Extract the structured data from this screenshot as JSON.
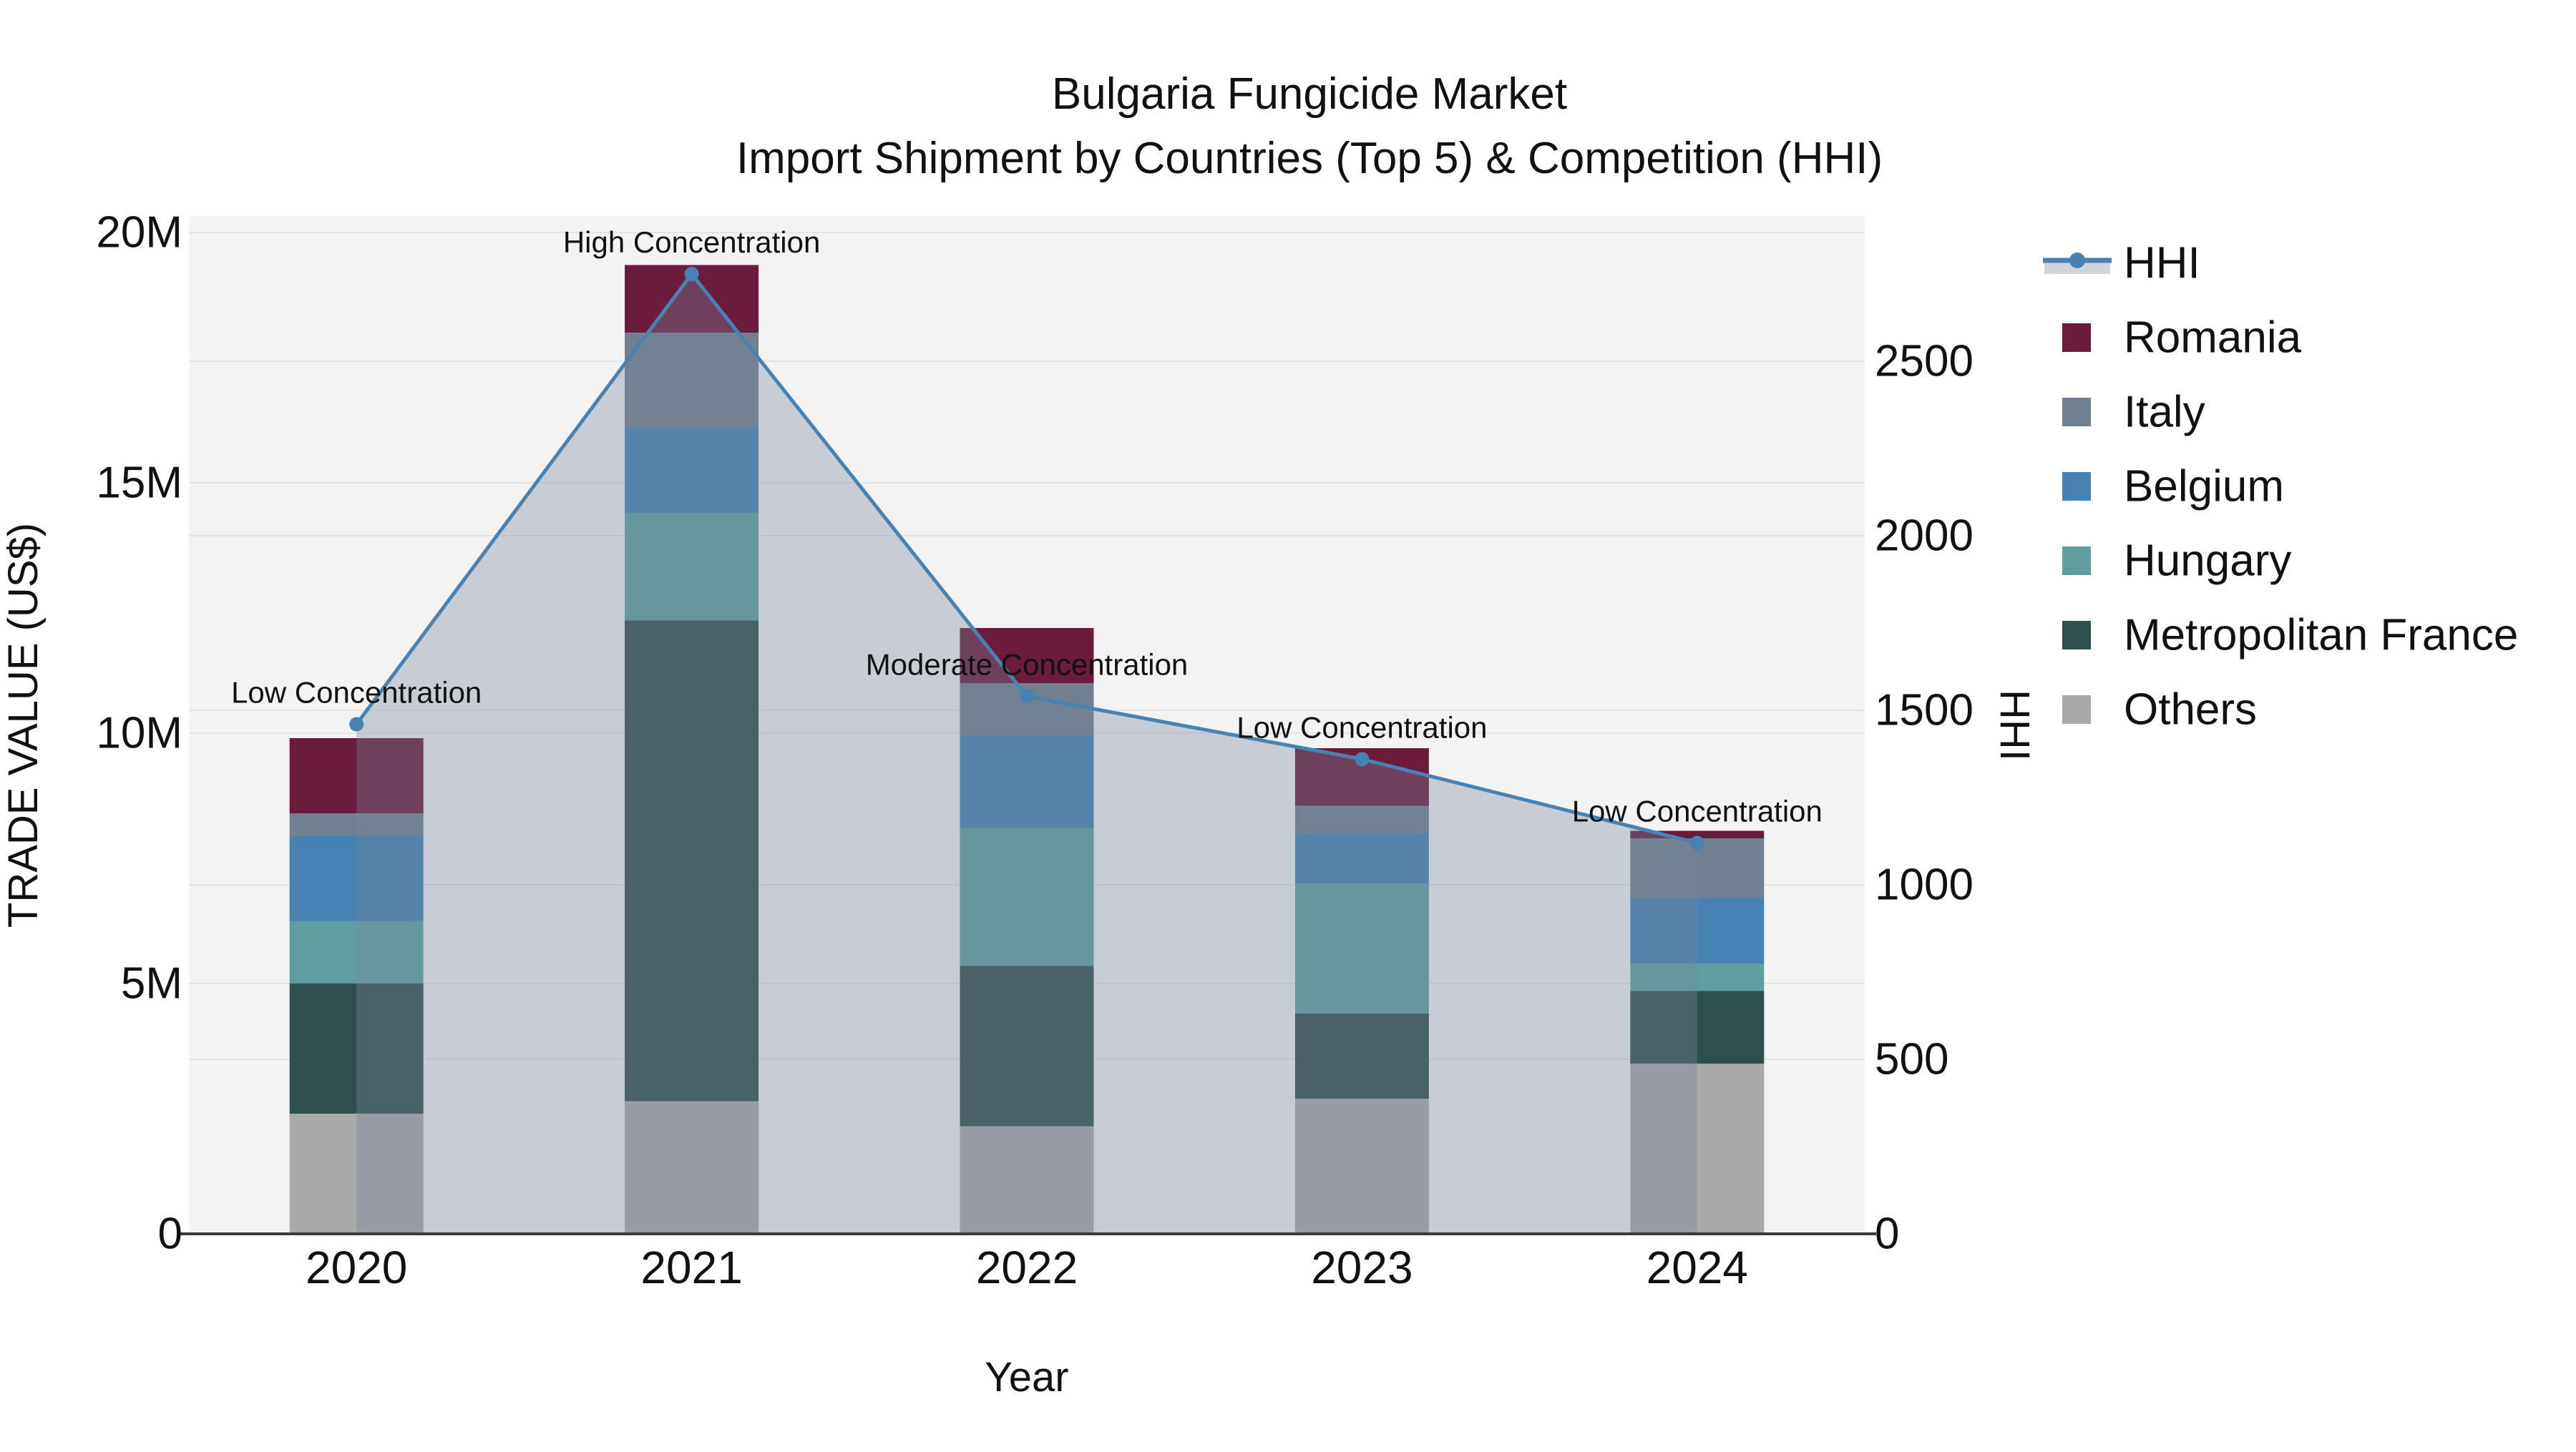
{
  "title": {
    "line1": "Bulgaria Fungicide Market",
    "line2": "Import Shipment by Countries (Top 5) & Competition (HHI)"
  },
  "chart_data": {
    "type": "stacked-bar+line",
    "unit": "USD millions (left axis), HHI index (right axis)",
    "categories": [
      "2020",
      "2021",
      "2022",
      "2023",
      "2024"
    ],
    "series": [
      {
        "name": "Others",
        "color": "#A9A9A9",
        "values": [
          2.4,
          2.65,
          2.15,
          2.7,
          3.4
        ]
      },
      {
        "name": "Metropolitan France",
        "color": "#2F4F4F",
        "values": [
          2.6,
          9.6,
          3.2,
          1.7,
          1.45
        ]
      },
      {
        "name": "Hungary",
        "color": "#5F9EA0",
        "values": [
          1.25,
          2.15,
          2.75,
          2.6,
          0.55
        ]
      },
      {
        "name": "Belgium",
        "color": "#4682B4",
        "values": [
          1.7,
          1.7,
          1.85,
          1.0,
          1.3
        ]
      },
      {
        "name": "Italy",
        "color": "#708090",
        "values": [
          0.45,
          1.9,
          1.05,
          0.55,
          1.2
        ]
      },
      {
        "name": "Romania",
        "color": "#6B1B3C",
        "values": [
          1.5,
          1.35,
          1.1,
          1.15,
          0.15
        ]
      }
    ],
    "totals": [
      9.9,
      19.35,
      12.1,
      9.7,
      8.05
    ],
    "line": {
      "name": "HHI",
      "axis": "right",
      "color": "#4682B4",
      "area_color": "#778899",
      "area_opacity": 0.35,
      "values": [
        1460,
        2750,
        1540,
        1360,
        1120
      ]
    },
    "annotations": [
      {
        "category": "2020",
        "text": "Low Concentration"
      },
      {
        "category": "2021",
        "text": "High Concentration"
      },
      {
        "category": "2022",
        "text": "Moderate Concentration"
      },
      {
        "category": "2023",
        "text": "Low Concentration"
      },
      {
        "category": "2024",
        "text": "Low Concentration"
      }
    ],
    "axes": {
      "x": {
        "label": "Year",
        "tick_labels": [
          "2020",
          "2021",
          "2022",
          "2023",
          "2024"
        ]
      },
      "left": {
        "label": "TRADE VALUE (US$)",
        "tick_values": [
          0,
          5,
          10,
          15,
          20
        ],
        "tick_labels": [
          "0",
          "5M",
          "10M",
          "15M",
          "20M"
        ],
        "range": [
          0,
          20.35
        ]
      },
      "right": {
        "label": "HHI",
        "tick_values": [
          0,
          500,
          1000,
          1500,
          2000,
          2500
        ],
        "tick_labels": [
          "0",
          "500",
          "1000",
          "1500",
          "2000",
          "2500"
        ],
        "range": [
          0,
          2500
        ]
      }
    },
    "legend": {
      "position": "right",
      "entries": [
        "HHI",
        "Romania",
        "Italy",
        "Belgium",
        "Hungary",
        "Metropolitan France",
        "Others"
      ]
    },
    "grid": true
  },
  "style": {
    "page_bg": "#ffffff",
    "plot_bg": "#f3f3f3",
    "grid_color": "#e4e4e7",
    "axis_line_color": "#3a3a3a",
    "text_color": "#111111"
  }
}
